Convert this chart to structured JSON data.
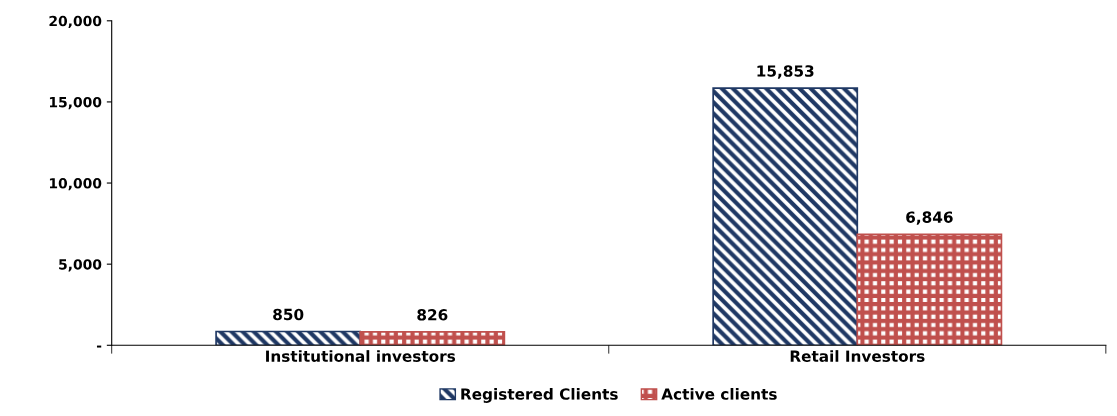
{
  "chart_data": {
    "type": "bar",
    "categories": [
      "Institutional investors",
      "Retail Investors"
    ],
    "series": [
      {
        "name": "Registered Clients",
        "color": "#1f3864",
        "values": [
          850,
          15853
        ],
        "value_labels": [
          "850",
          "15,853"
        ]
      },
      {
        "name": "Active clients",
        "color": "#c0504d",
        "values": [
          826,
          6846
        ],
        "value_labels": [
          "826",
          "6,846"
        ]
      }
    ],
    "ylim": [
      0,
      20000
    ],
    "yticks": [
      {
        "value": 0,
        "label": "-"
      },
      {
        "value": 5000,
        "label": "5,000"
      },
      {
        "value": 10000,
        "label": "10,000"
      },
      {
        "value": 15000,
        "label": "15,000"
      },
      {
        "value": 20000,
        "label": "20,000"
      }
    ],
    "grid": false,
    "legend": "bottom"
  }
}
